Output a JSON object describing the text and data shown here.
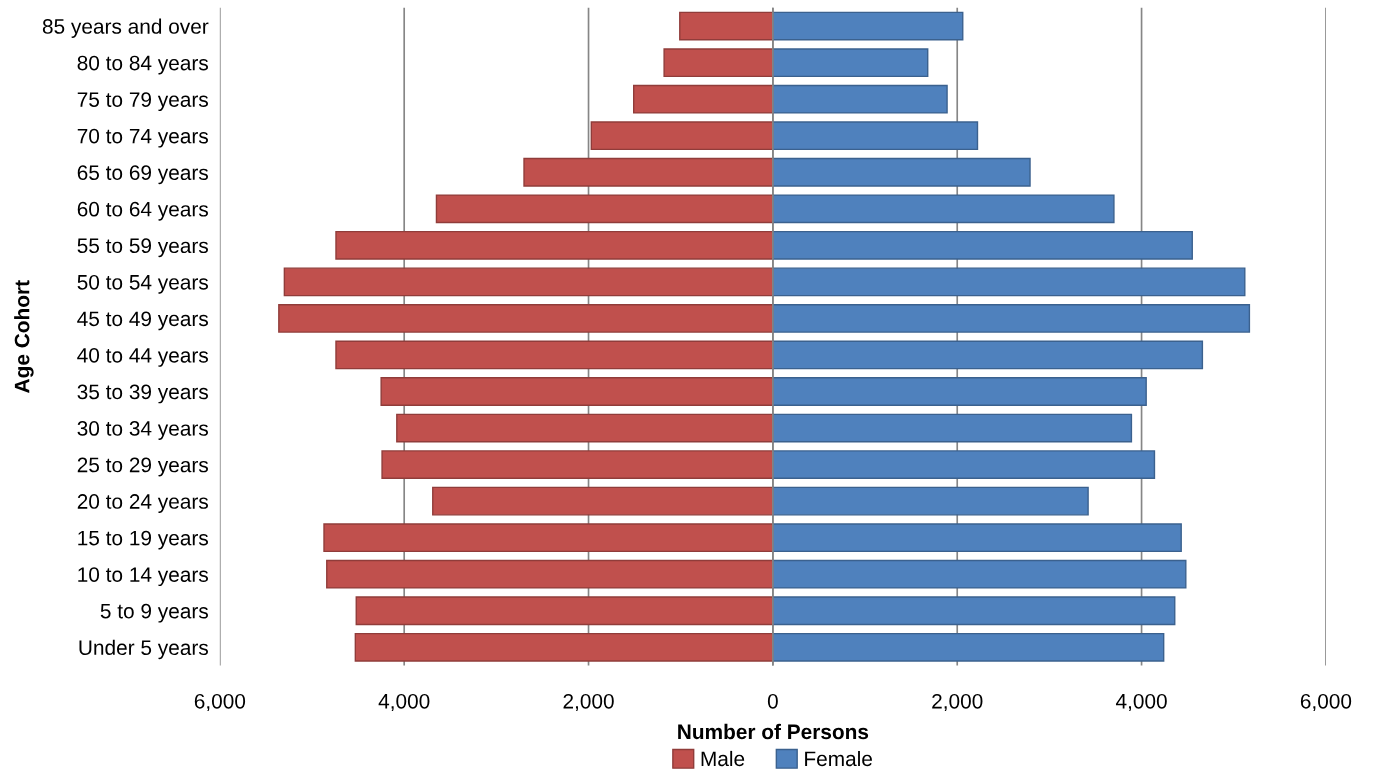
{
  "chart_data": {
    "type": "bar",
    "orientation": "horizontal",
    "stacked": true,
    "xlabel": "Number of Persons",
    "ylabel": "Age Cohort",
    "categories": [
      "85 years and over",
      "80 to 84 years",
      "75 to 79 years",
      "70 to 74 years",
      "65 to 69 years",
      "60 to 64 years",
      "55 to 59 years",
      "50 to 54 years",
      "45 to 49 years",
      "40 to 44 years",
      "35 to 39 years",
      "30 to 34 years",
      "25 to 29 years",
      "20 to 24 years",
      "15 to 19 years",
      "10 to 14 years",
      "5 to 9 years",
      "Under 5 years"
    ],
    "series": [
      {
        "name": "Male",
        "color": "#c0504d",
        "values": [
          -1010,
          -1180,
          -1510,
          -1970,
          -2700,
          -3650,
          -4740,
          -5300,
          -5360,
          -4740,
          -4250,
          -4080,
          -4240,
          -3690,
          -4870,
          -4840,
          -4520,
          -4530
        ]
      },
      {
        "name": "Female",
        "color": "#4f81bd",
        "values": [
          2060,
          1680,
          1890,
          2220,
          2790,
          3700,
          4550,
          5120,
          5170,
          4660,
          4050,
          3890,
          4140,
          3420,
          4430,
          4480,
          4360,
          4240
        ]
      }
    ],
    "xlim": [
      -6000,
      6000
    ],
    "xticks": [
      {
        "value": -6000,
        "label": "6,000"
      },
      {
        "value": -4000,
        "label": "4,000"
      },
      {
        "value": -2000,
        "label": "2,000"
      },
      0,
      {
        "value": 2000,
        "label": "2,000"
      },
      {
        "value": 4000,
        "label": "4,000"
      },
      {
        "value": 6000,
        "label": "6,000"
      }
    ],
    "grid": "x",
    "legend": "bottom"
  }
}
